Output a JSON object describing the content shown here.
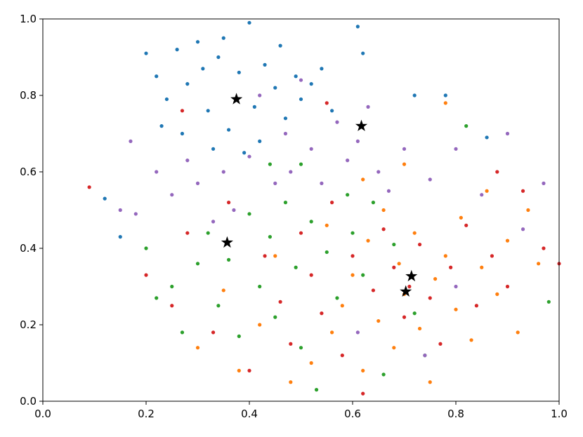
{
  "chart_data": {
    "type": "scatter",
    "xlim": [
      0,
      1
    ],
    "ylim": [
      0,
      1
    ],
    "xticks": [
      {
        "value": 0,
        "label": "0.0"
      },
      {
        "value": 0.2,
        "label": "0.2"
      },
      {
        "value": 0.4,
        "label": "0.4"
      },
      {
        "value": 0.6,
        "label": "0.6"
      },
      {
        "value": 0.8,
        "label": "0.8"
      },
      {
        "value": 1,
        "label": "1.0"
      }
    ],
    "yticks": [
      {
        "value": 0,
        "label": "0.0"
      },
      {
        "value": 0.2,
        "label": "0.2"
      },
      {
        "value": 0.4,
        "label": "0.4"
      },
      {
        "value": 0.6,
        "label": "0.6"
      },
      {
        "value": 0.8,
        "label": "0.8"
      },
      {
        "value": 1,
        "label": "1.0"
      }
    ],
    "series": [
      {
        "color": "#1f77b4",
        "marker": "dot",
        "x": [
          0.2,
          0.22,
          0.24,
          0.26,
          0.28,
          0.3,
          0.31,
          0.32,
          0.34,
          0.35,
          0.36,
          0.38,
          0.4,
          0.41,
          0.42,
          0.43,
          0.45,
          0.46,
          0.47,
          0.49,
          0.5,
          0.52,
          0.54,
          0.56,
          0.23,
          0.27,
          0.33,
          0.39,
          0.61,
          0.62,
          0.72,
          0.78,
          0.12,
          0.15,
          0.86
        ],
        "y": [
          0.91,
          0.85,
          0.79,
          0.92,
          0.83,
          0.94,
          0.87,
          0.76,
          0.9,
          0.95,
          0.71,
          0.86,
          0.99,
          0.77,
          0.68,
          0.88,
          0.82,
          0.93,
          0.74,
          0.85,
          0.79,
          0.83,
          0.87,
          0.76,
          0.72,
          0.7,
          0.66,
          0.65,
          0.98,
          0.91,
          0.8,
          0.8,
          0.53,
          0.43,
          0.69
        ]
      },
      {
        "color": "#ff7f0e",
        "marker": "dot",
        "x": [
          0.48,
          0.52,
          0.56,
          0.58,
          0.6,
          0.62,
          0.63,
          0.65,
          0.66,
          0.68,
          0.69,
          0.7,
          0.72,
          0.73,
          0.75,
          0.76,
          0.78,
          0.8,
          0.81,
          0.83,
          0.85,
          0.86,
          0.88,
          0.9,
          0.92,
          0.94,
          0.96,
          0.42,
          0.38,
          0.3,
          0.35,
          0.45,
          0.55,
          0.62,
          0.7,
          0.78
        ],
        "y": [
          0.05,
          0.1,
          0.18,
          0.25,
          0.33,
          0.08,
          0.42,
          0.21,
          0.5,
          0.14,
          0.36,
          0.28,
          0.44,
          0.19,
          0.05,
          0.32,
          0.38,
          0.24,
          0.48,
          0.16,
          0.35,
          0.55,
          0.28,
          0.42,
          0.18,
          0.5,
          0.36,
          0.2,
          0.08,
          0.14,
          0.29,
          0.38,
          0.46,
          0.58,
          0.62,
          0.78
        ]
      },
      {
        "color": "#2ca02c",
        "marker": "dot",
        "x": [
          0.2,
          0.22,
          0.25,
          0.27,
          0.3,
          0.32,
          0.34,
          0.36,
          0.38,
          0.4,
          0.42,
          0.44,
          0.45,
          0.47,
          0.49,
          0.5,
          0.52,
          0.53,
          0.55,
          0.57,
          0.59,
          0.6,
          0.62,
          0.64,
          0.66,
          0.68,
          0.72,
          0.74,
          0.5,
          0.44,
          0.98,
          0.82
        ],
        "y": [
          0.4,
          0.27,
          0.3,
          0.18,
          0.36,
          0.44,
          0.25,
          0.37,
          0.17,
          0.49,
          0.3,
          0.43,
          0.22,
          0.52,
          0.35,
          0.14,
          0.47,
          0.03,
          0.39,
          0.27,
          0.54,
          0.44,
          0.33,
          0.52,
          0.07,
          0.41,
          0.23,
          0.12,
          0.62,
          0.62,
          0.26,
          0.72
        ]
      },
      {
        "color": "#d62728",
        "marker": "dot",
        "x": [
          0.09,
          0.2,
          0.25,
          0.28,
          0.33,
          0.36,
          0.4,
          0.43,
          0.46,
          0.48,
          0.5,
          0.52,
          0.54,
          0.56,
          0.58,
          0.6,
          0.62,
          0.64,
          0.66,
          0.68,
          0.7,
          0.71,
          0.73,
          0.75,
          0.77,
          0.79,
          0.82,
          0.84,
          0.87,
          0.9,
          0.93,
          0.97,
          1.0,
          0.27,
          0.55,
          0.88
        ],
        "y": [
          0.56,
          0.33,
          0.25,
          0.44,
          0.18,
          0.52,
          0.08,
          0.38,
          0.26,
          0.15,
          0.44,
          0.33,
          0.23,
          0.52,
          0.12,
          0.38,
          0.02,
          0.29,
          0.45,
          0.35,
          0.22,
          0.3,
          0.41,
          0.27,
          0.15,
          0.35,
          0.46,
          0.25,
          0.38,
          0.3,
          0.55,
          0.4,
          0.36,
          0.76,
          0.78,
          0.6
        ]
      },
      {
        "color": "#9467bd",
        "marker": "dot",
        "x": [
          0.15,
          0.17,
          0.18,
          0.22,
          0.25,
          0.28,
          0.3,
          0.33,
          0.35,
          0.37,
          0.4,
          0.42,
          0.45,
          0.47,
          0.48,
          0.5,
          0.52,
          0.54,
          0.57,
          0.59,
          0.61,
          0.63,
          0.65,
          0.67,
          0.7,
          0.75,
          0.8,
          0.85,
          0.9,
          0.93,
          0.97,
          0.61,
          0.74,
          0.8
        ],
        "y": [
          0.5,
          0.68,
          0.49,
          0.6,
          0.54,
          0.63,
          0.57,
          0.47,
          0.6,
          0.5,
          0.64,
          0.8,
          0.57,
          0.7,
          0.6,
          0.84,
          0.66,
          0.57,
          0.73,
          0.63,
          0.68,
          0.77,
          0.6,
          0.55,
          0.66,
          0.58,
          0.66,
          0.54,
          0.7,
          0.45,
          0.57,
          0.18,
          0.12,
          0.3
        ]
      },
      {
        "color": "#000000",
        "marker": "star",
        "x": [
          0.375,
          0.617,
          0.357,
          0.714,
          0.703
        ],
        "y": [
          0.79,
          0.72,
          0.415,
          0.327,
          0.287
        ]
      }
    ]
  }
}
